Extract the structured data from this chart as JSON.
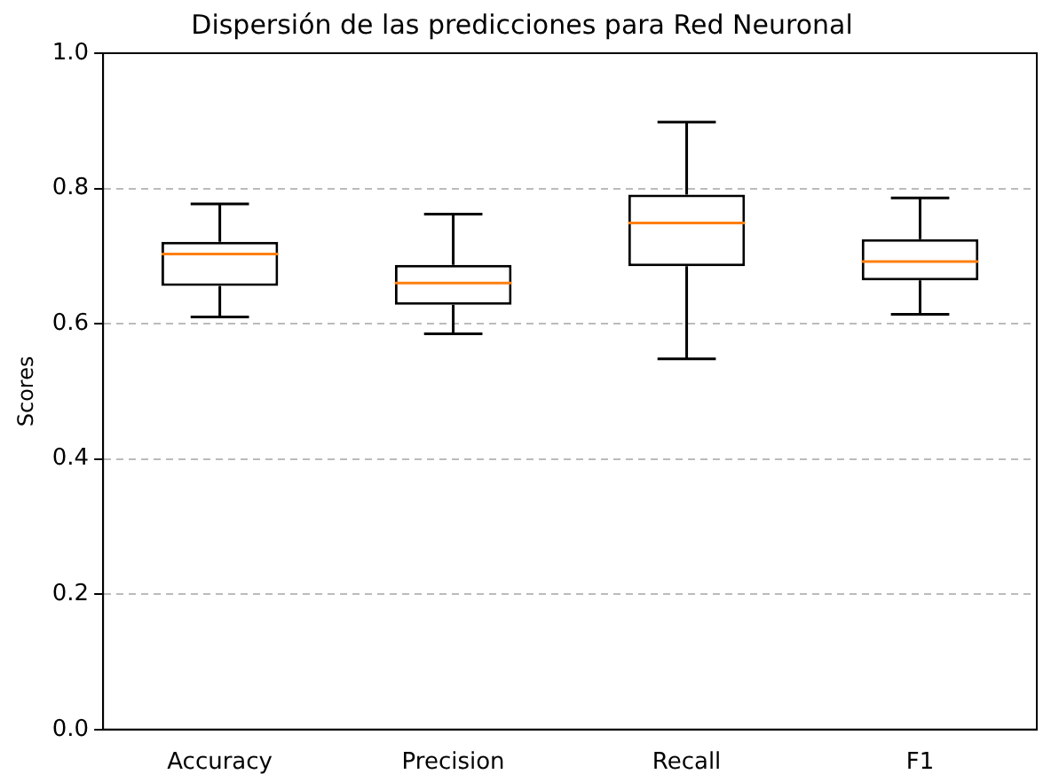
{
  "chart_data": {
    "type": "box",
    "title": "Dispersión de las predicciones para Red Neuronal",
    "ylabel": "Scores",
    "categories": [
      "Accuracy",
      "Precision",
      "Recall",
      "F1"
    ],
    "boxes": [
      {
        "low": 0.61,
        "q1": 0.656,
        "median": 0.703,
        "q3": 0.721,
        "high": 0.777
      },
      {
        "low": 0.585,
        "q1": 0.628,
        "median": 0.66,
        "q3": 0.687,
        "high": 0.762
      },
      {
        "low": 0.548,
        "q1": 0.685,
        "median": 0.749,
        "q3": 0.791,
        "high": 0.898
      },
      {
        "low": 0.614,
        "q1": 0.664,
        "median": 0.692,
        "q3": 0.725,
        "high": 0.786
      }
    ],
    "color": "#000000",
    "ylim": [
      0,
      1
    ],
    "yticks": [
      {
        "value": 0,
        "label": "0.0"
      },
      {
        "value": 0.2,
        "label": "0.2"
      },
      {
        "value": 0.4,
        "label": "0.4"
      },
      {
        "value": 0.6,
        "label": "0.6"
      },
      {
        "value": 0.8,
        "label": "0.8"
      },
      {
        "value": 1,
        "label": "1.0"
      }
    ],
    "grid": "y",
    "legend": false
  }
}
